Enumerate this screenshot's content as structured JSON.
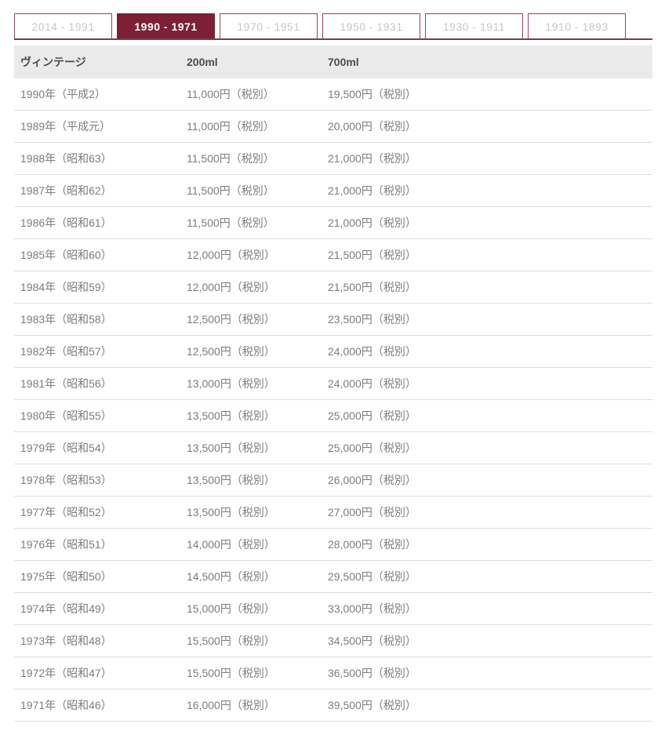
{
  "tab_bar": {
    "tabs": [
      {
        "label": "2014 - 1991",
        "active": false
      },
      {
        "label": "1990 - 1971",
        "active": true
      },
      {
        "label": "1970 - 1951",
        "active": false
      },
      {
        "label": "1950 - 1931",
        "active": false
      },
      {
        "label": "1930 - 1911",
        "active": false
      },
      {
        "label": "1910 - 1893",
        "active": false
      }
    ]
  },
  "table": {
    "columns": [
      "ヴィンテージ",
      "200ml",
      "700ml"
    ],
    "rows": [
      [
        "1990年（平成2）",
        "11,000円（税別）",
        "19,500円（税別）"
      ],
      [
        "1989年（平成元）",
        "11,000円（税別）",
        "20,000円（税別）"
      ],
      [
        "1988年（昭和63）",
        "11,500円（税別）",
        "21,000円（税別）"
      ],
      [
        "1987年（昭和62）",
        "11,500円（税別）",
        "21,000円（税別）"
      ],
      [
        "1986年（昭和61）",
        "11,500円（税別）",
        "21,000円（税別）"
      ],
      [
        "1985年（昭和60）",
        "12,000円（税別）",
        "21,500円（税別）"
      ],
      [
        "1984年（昭和59）",
        "12,000円（税別）",
        "21,500円（税別）"
      ],
      [
        "1983年（昭和58）",
        "12,500円（税別）",
        "23,500円（税別）"
      ],
      [
        "1982年（昭和57）",
        "12,500円（税別）",
        "24,000円（税別）"
      ],
      [
        "1981年（昭和56）",
        "13,000円（税別）",
        "24,000円（税別）"
      ],
      [
        "1980年（昭和55）",
        "13,500円（税別）",
        "25,000円（税別）"
      ],
      [
        "1979年（昭和54）",
        "13,500円（税別）",
        "25,000円（税別）"
      ],
      [
        "1978年（昭和53）",
        "13,500円（税別）",
        "26,000円（税別）"
      ],
      [
        "1977年（昭和52）",
        "13,500円（税別）",
        "27,000円（税別）"
      ],
      [
        "1976年（昭和51）",
        "14,000円（税別）",
        "28,000円（税別）"
      ],
      [
        "1975年（昭和50）",
        "14,500円（税別）",
        "29,500円（税別）"
      ],
      [
        "1974年（昭和49）",
        "15,000円（税別）",
        "33,000円（税別）"
      ],
      [
        "1973年（昭和48）",
        "15,500円（税別）",
        "34,500円（税別）"
      ],
      [
        "1972年（昭和47）",
        "15,500円（税別）",
        "36,500円（税別）"
      ],
      [
        "1971年（昭和46）",
        "16,000円（税別）",
        "39,500円（税別）"
      ]
    ]
  },
  "colors": {
    "accent_maroon": "#7b2035",
    "tab_border": "#94455a",
    "tab_underline": "#7c3c4b",
    "inactive_tab_text": "#c8c8c8",
    "active_tab_text": "#ffffff",
    "header_row_bg": "#eaeaea",
    "header_text": "#4d4d4d",
    "body_text": "#7d7d7d",
    "row_divider": "#dedede"
  }
}
